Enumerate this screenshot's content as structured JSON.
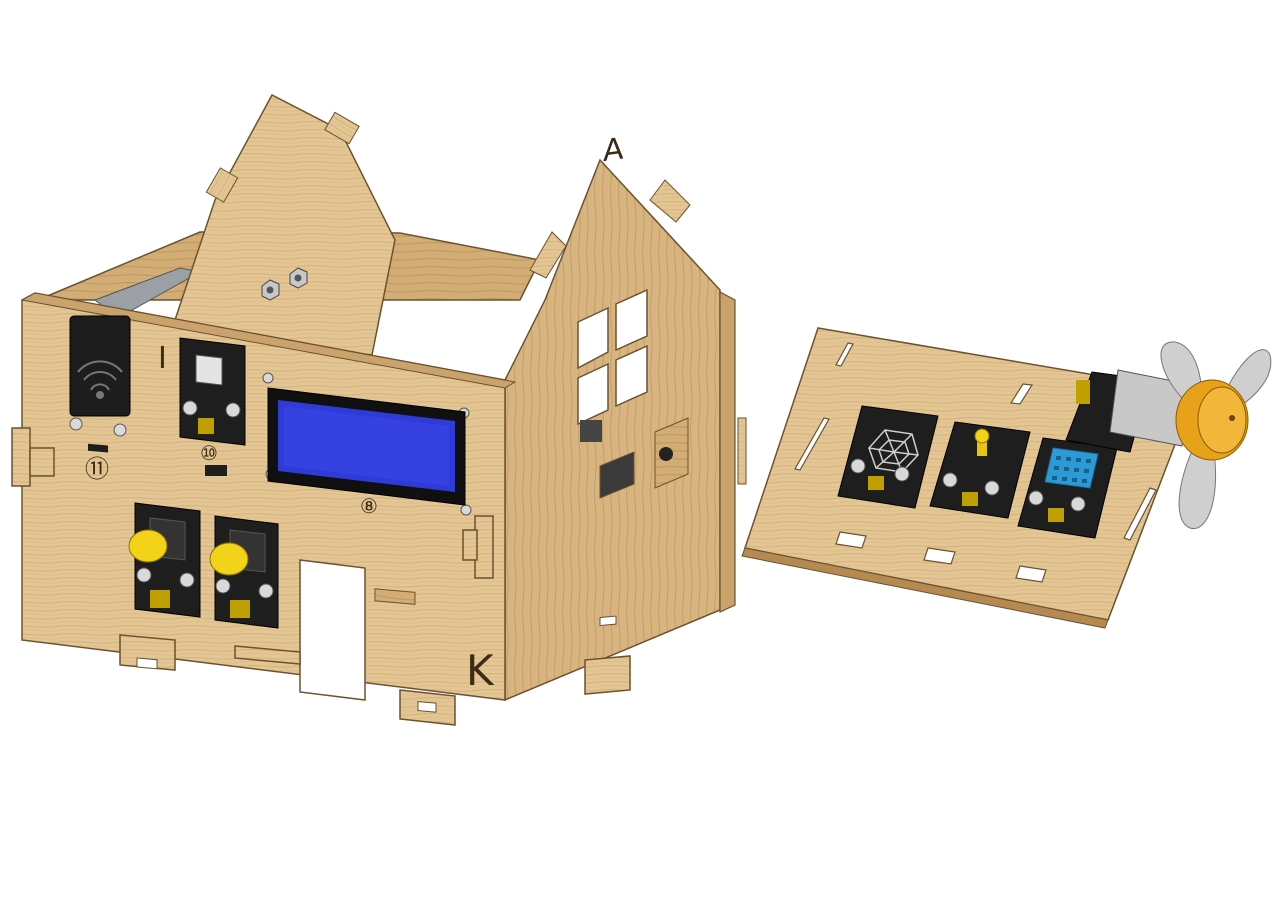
{
  "labels": {
    "house_side_letter": "A",
    "house_front_letter": "K",
    "panel_number_i": "I",
    "label_11": "⑪",
    "label_10": "⑩",
    "label_8": "⑧"
  },
  "colors": {
    "wood_light": "#e6c99a",
    "wood_mid": "#d7b47e",
    "wood_dark": "#b48a52",
    "wood_edge": "#8a6a3c",
    "module_black": "#1e1e1e",
    "lcd_blue": "#2f3bd6",
    "button_yellow": "#f2d31a",
    "sensor_blue": "#2a9bd6",
    "motor_gold": "#e7a21a",
    "fan_gray": "#cfcfcf"
  },
  "icons": {
    "speaker": "buzzer-speaker-icon",
    "web": "sound-sensor-icon",
    "led": "led-icon",
    "dht": "humidity-sensor-icon",
    "fan": "fan-icon"
  }
}
